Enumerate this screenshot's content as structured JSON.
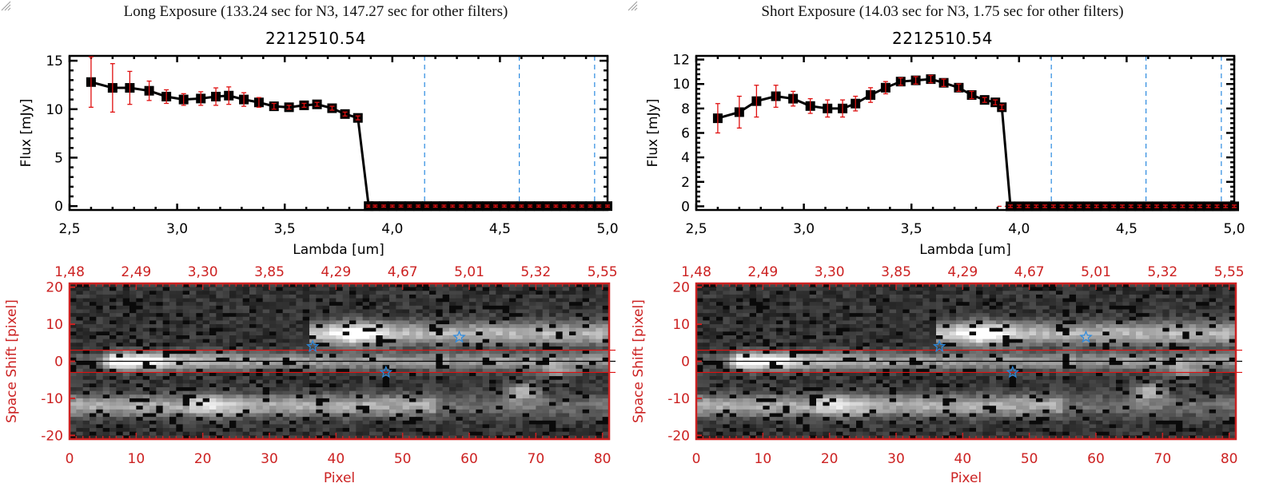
{
  "panels": [
    {
      "exposure_title": "Long Exposure (133.24 sec for N3, 147.27 sec for other filters)",
      "object_title": "2212510.54"
    },
    {
      "exposure_title": "Short Exposure (14.03 sec for N3, 1.75 sec for other filters)",
      "object_title": "2212510.54"
    }
  ],
  "colors": {
    "series_line": "#000000",
    "error_bar": "#e01010",
    "filter_line": "#2a8ae0",
    "zero_line": "#e01010",
    "image_axis": "#cc2222",
    "star_marker": "#2a8ae0"
  },
  "chart_data": [
    {
      "type": "line",
      "title": "2212510.54",
      "subtitle": "Long Exposure (133.24 sec for N3, 147.27 sec for other filters)",
      "xlabel": "Lambda [um]",
      "ylabel": "Flux [mJy]",
      "xlim": [
        2.5,
        5.0
      ],
      "ylim": [
        -0.4,
        15.5
      ],
      "xticks": [
        2.5,
        3.0,
        3.5,
        4.0,
        4.5,
        5.0
      ],
      "xtick_labels": [
        "2,5",
        "3,0",
        "3,5",
        "4,0",
        "4,5",
        "5,0"
      ],
      "yticks": [
        0,
        5,
        10,
        15
      ],
      "ytick_labels": [
        "0",
        "5",
        "10",
        "15"
      ],
      "filter_lines": [
        4.15,
        4.59,
        4.94
      ],
      "x": [
        2.6,
        2.7,
        2.78,
        2.87,
        2.95,
        3.03,
        3.11,
        3.18,
        3.24,
        3.31,
        3.38,
        3.45,
        3.52,
        3.59,
        3.65,
        3.72,
        3.78,
        3.84,
        3.89,
        3.92,
        3.96,
        4.0,
        4.04,
        4.08,
        4.12,
        4.16,
        4.2,
        4.24,
        4.28,
        4.32,
        4.36,
        4.4,
        4.44,
        4.48,
        4.52,
        4.56,
        4.6,
        4.64,
        4.68,
        4.72,
        4.76,
        4.8,
        4.84,
        4.88,
        4.92,
        4.96,
        5.0
      ],
      "series": [
        {
          "name": "Flux",
          "values": [
            12.8,
            12.2,
            12.2,
            11.9,
            11.3,
            11.0,
            11.1,
            11.3,
            11.4,
            11.0,
            10.7,
            10.3,
            10.2,
            10.4,
            10.5,
            10.1,
            9.5,
            9.1,
            0.0,
            0.0,
            0.0,
            0.0,
            0.0,
            0.0,
            0.0,
            0.0,
            0.0,
            0.0,
            0.0,
            0.0,
            0.0,
            0.0,
            0.0,
            0.0,
            0.0,
            0.0,
            0.0,
            0.0,
            0.0,
            0.0,
            0.0,
            0.0,
            0.0,
            0.0,
            0.0,
            0.0,
            0.0
          ],
          "errors": [
            2.6,
            2.5,
            1.7,
            1.0,
            0.7,
            0.6,
            0.7,
            0.9,
            0.9,
            0.7,
            0.5,
            0.3,
            0.2,
            0.2,
            0.2,
            0.2,
            0.2,
            0.2,
            0.1,
            0.1,
            0.1,
            0.1,
            0.1,
            0.1,
            0.1,
            0.1,
            0.1,
            0.1,
            0.1,
            0.1,
            0.1,
            0.1,
            0.1,
            0.1,
            0.1,
            0.1,
            0.1,
            0.1,
            0.1,
            0.1,
            0.1,
            0.1,
            0.1,
            0.1,
            0.1,
            0.1,
            0.1
          ]
        }
      ],
      "image": {
        "xlabel": "Pixel",
        "ylabel": "Space Shift [pixel]",
        "xlim": [
          0,
          81
        ],
        "ylim": [
          -21,
          21
        ],
        "xticks": [
          0,
          10,
          20,
          30,
          40,
          50,
          60,
          70,
          80
        ],
        "yticks": [
          -20,
          -10,
          0,
          10,
          20
        ],
        "top_tick_labels": [
          "1,48",
          "2,49",
          "3,30",
          "3,85",
          "4,29",
          "4,67",
          "5,01",
          "5,32",
          "5,55"
        ],
        "aperture_lines": [
          3,
          -3
        ],
        "center_line": 0,
        "stars": [
          [
            36.5,
            4
          ],
          [
            47.5,
            -3
          ],
          [
            58.5,
            6.5
          ]
        ]
      }
    },
    {
      "type": "line",
      "title": "2212510.54",
      "subtitle": "Short Exposure (14.03 sec for N3, 1.75 sec for other filters)",
      "xlabel": "Lambda [um]",
      "ylabel": "Flux [mJy]",
      "xlim": [
        2.5,
        5.0
      ],
      "ylim": [
        -0.3,
        12.3
      ],
      "xticks": [
        2.5,
        3.0,
        3.5,
        4.0,
        4.5,
        5.0
      ],
      "xtick_labels": [
        "2,5",
        "3,0",
        "3,5",
        "4,0",
        "4,5",
        "5,0"
      ],
      "yticks": [
        0,
        2,
        4,
        6,
        8,
        10,
        12
      ],
      "ytick_labels": [
        "0",
        "2",
        "4",
        "6",
        "8",
        "10",
        "12"
      ],
      "filter_lines": [
        4.15,
        4.59,
        4.94
      ],
      "x": [
        2.6,
        2.7,
        2.78,
        2.87,
        2.95,
        3.03,
        3.11,
        3.18,
        3.24,
        3.31,
        3.38,
        3.45,
        3.52,
        3.59,
        3.65,
        3.72,
        3.78,
        3.84,
        3.89,
        3.92,
        3.96,
        4.0,
        4.04,
        4.08,
        4.12,
        4.16,
        4.2,
        4.24,
        4.28,
        4.32,
        4.36,
        4.4,
        4.44,
        4.48,
        4.52,
        4.56,
        4.6,
        4.64,
        4.68,
        4.72,
        4.76,
        4.8,
        4.84,
        4.88,
        4.92,
        4.96,
        5.0
      ],
      "series": [
        {
          "name": "Flux",
          "values": [
            7.2,
            7.7,
            8.6,
            9.0,
            8.8,
            8.2,
            8.0,
            8.0,
            8.4,
            9.1,
            9.7,
            10.2,
            10.3,
            10.4,
            10.1,
            9.7,
            9.1,
            8.7,
            8.5,
            8.1,
            0.0,
            0.0,
            0.0,
            0.0,
            0.0,
            0.0,
            0.0,
            0.0,
            0.0,
            0.0,
            0.0,
            0.0,
            0.0,
            0.0,
            0.0,
            0.0,
            0.0,
            0.0,
            0.0,
            0.0,
            0.0,
            0.0,
            0.0,
            0.0,
            0.0,
            0.0,
            0.0
          ],
          "errors": [
            1.2,
            1.3,
            1.3,
            0.9,
            0.6,
            0.6,
            0.7,
            0.7,
            0.6,
            0.6,
            0.5,
            0.3,
            0.3,
            0.3,
            0.3,
            0.3,
            0.3,
            0.2,
            0.2,
            0.2,
            0.1,
            0.1,
            0.1,
            0.1,
            0.1,
            0.1,
            0.1,
            0.1,
            0.1,
            0.1,
            0.1,
            0.1,
            0.1,
            0.1,
            0.1,
            0.1,
            0.1,
            0.1,
            0.1,
            0.1,
            0.1,
            0.1,
            0.1,
            0.1,
            0.1,
            0.1,
            0.1
          ]
        }
      ],
      "image": {
        "xlabel": "Pixel",
        "ylabel": "Space Shift [pixel]",
        "xlim": [
          0,
          81
        ],
        "ylim": [
          -21,
          21
        ],
        "xticks": [
          0,
          10,
          20,
          30,
          40,
          50,
          60,
          70,
          80
        ],
        "yticks": [
          -20,
          -10,
          0,
          10,
          20
        ],
        "top_tick_labels": [
          "1,48",
          "2,49",
          "3,30",
          "3,85",
          "4,29",
          "4,67",
          "5,01",
          "5,32",
          "5,55"
        ],
        "aperture_lines": [
          3,
          -3
        ],
        "center_line": 0,
        "stars": [
          [
            36.5,
            4
          ],
          [
            47.5,
            -3
          ],
          [
            58.5,
            6.5
          ]
        ]
      }
    }
  ]
}
